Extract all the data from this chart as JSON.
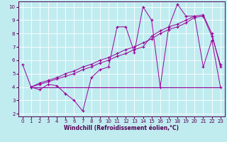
{
  "title": "",
  "xlabel": "Windchill (Refroidissement éolien,°C)",
  "bg_color": "#c0ecf0",
  "grid_color": "#ffffff",
  "line_color": "#990099",
  "xlim": [
    -0.5,
    23.5
  ],
  "ylim": [
    1.8,
    10.4
  ],
  "xticks": [
    0,
    1,
    2,
    3,
    4,
    5,
    6,
    7,
    8,
    9,
    10,
    11,
    12,
    13,
    14,
    15,
    16,
    17,
    18,
    19,
    20,
    21,
    22,
    23
  ],
  "yticks": [
    2,
    3,
    4,
    5,
    6,
    7,
    8,
    9,
    10
  ],
  "line1_x": [
    0,
    1,
    2,
    3,
    4,
    5,
    5,
    6,
    7,
    8,
    9,
    10,
    11,
    12,
    13,
    14,
    15,
    16,
    17,
    18,
    19,
    20,
    21,
    22,
    23
  ],
  "line1_y": [
    5.7,
    4.0,
    3.8,
    4.2,
    4.1,
    3.5,
    3.5,
    3.0,
    2.2,
    4.7,
    5.3,
    5.5,
    8.5,
    8.5,
    6.6,
    10.0,
    9.0,
    4.0,
    8.5,
    10.2,
    9.3,
    9.3,
    5.5,
    7.5,
    4.0
  ],
  "line2_x": [
    1,
    23
  ],
  "line2_y": [
    4.0,
    4.0
  ],
  "line3_x": [
    1,
    2,
    3,
    4,
    5,
    6,
    7,
    8,
    9,
    10,
    11,
    12,
    13,
    14,
    15,
    16,
    17,
    18,
    19,
    20,
    21,
    22,
    23
  ],
  "line3_y": [
    4.0,
    4.3,
    4.5,
    4.7,
    5.0,
    5.2,
    5.5,
    5.7,
    6.0,
    6.2,
    6.5,
    6.8,
    7.0,
    7.3,
    7.6,
    8.0,
    8.3,
    8.5,
    8.8,
    9.2,
    9.3,
    7.8,
    5.7
  ],
  "line4_x": [
    1,
    2,
    3,
    4,
    5,
    6,
    7,
    8,
    9,
    10,
    11,
    12,
    13,
    14,
    15,
    16,
    17,
    18,
    19,
    20,
    21,
    22,
    23
  ],
  "line4_y": [
    4.0,
    4.2,
    4.4,
    4.6,
    4.8,
    5.0,
    5.3,
    5.5,
    5.8,
    6.0,
    6.3,
    6.5,
    6.8,
    7.0,
    7.8,
    8.2,
    8.5,
    8.7,
    9.0,
    9.3,
    9.4,
    8.0,
    5.5
  ]
}
